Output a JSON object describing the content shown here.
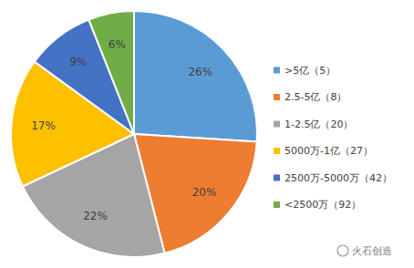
{
  "chart_data": {
    "type": "pie",
    "categories": [
      ">5亿（5）",
      "2.5-5亿（8）",
      "1-2.5亿（20）",
      "5000万-1亿（27）",
      "2500万-5000万（42）",
      "<2500万（92）"
    ],
    "values": [
      26,
      20,
      22,
      17,
      9,
      6
    ],
    "value_labels": [
      "26%",
      "20%",
      "22%",
      "17%",
      "9%",
      "6%"
    ],
    "colors": [
      "#5b9bd5",
      "#ed7d31",
      "#a5a5a5",
      "#ffc000",
      "#4472c4",
      "#70ad47"
    ],
    "data_labels": true,
    "legend": "right",
    "annotation": "火石创造"
  }
}
